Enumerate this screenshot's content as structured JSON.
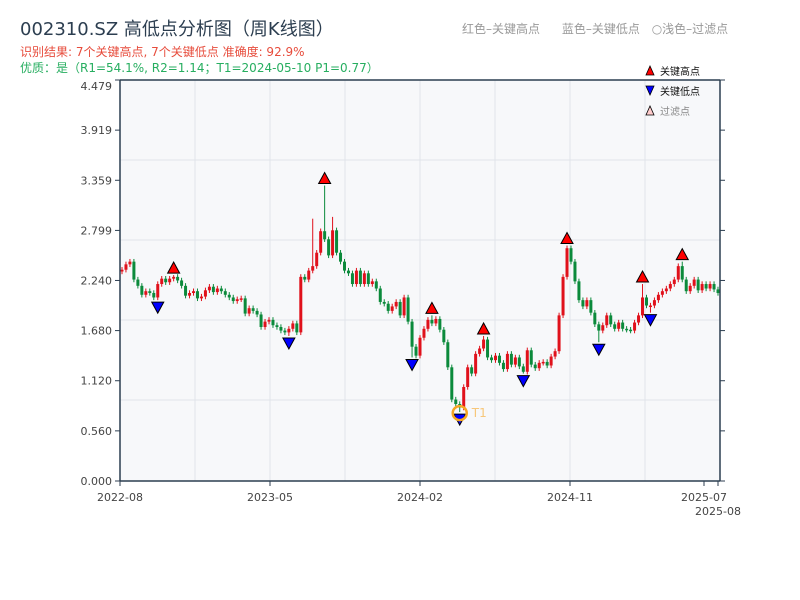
{
  "title": "002310.SZ 高低点分析图（周K线图）",
  "result_line": "识别结果: 7个关键高点, 7个关键低点   准确度: 92.9%",
  "quality_line": "优质：是（R1=54.1%, R2=1.14；T1=2024-05-10 P1=0.77）",
  "top_legend": [
    "红色–关键高点",
    "蓝色–关键低点",
    "○浅色–过滤点"
  ],
  "chart_data": {
    "type": "candlestick",
    "title": "002310.SZ 高低点分析图（周K线图）",
    "ylim": [
      0,
      4.479
    ],
    "y_ticks": [
      "0.000",
      "0.560",
      "1.120",
      "1.680",
      "2.240",
      "2.799",
      "3.359",
      "3.919",
      "4.479"
    ],
    "x_ticks": [
      "2022-08",
      "2023-05",
      "2024-02",
      "2024-11",
      "2025-07",
      "2025-08"
    ],
    "grid": true,
    "legend_placement": "top-right",
    "legend": [
      {
        "label": "关键高点",
        "marker": "triangle-up",
        "color": "#ff0000"
      },
      {
        "label": "关键低点",
        "marker": "triangle-down",
        "color": "#0000ff"
      },
      {
        "label": "过滤点",
        "marker": "triangle-up-hollow",
        "color": "#ffcccc"
      }
    ],
    "colors": {
      "up": "#e0111b",
      "down": "#0b8a3b",
      "high_marker": "#ff0000",
      "low_marker": "#0000ff",
      "t1": "#f5a623"
    },
    "first_open": 2.34,
    "closes": [
      2.36,
      2.42,
      2.45,
      2.25,
      2.18,
      2.08,
      2.12,
      2.1,
      2.05,
      2.2,
      2.26,
      2.22,
      2.26,
      2.28,
      2.24,
      2.18,
      2.07,
      2.1,
      2.12,
      2.04,
      2.06,
      2.13,
      2.17,
      2.11,
      2.15,
      2.12,
      2.08,
      2.05,
      2.01,
      2.03,
      2.04,
      1.87,
      1.93,
      1.9,
      1.86,
      1.72,
      1.78,
      1.8,
      1.74,
      1.72,
      1.68,
      1.66,
      1.7,
      1.76,
      1.66,
      2.28,
      2.25,
      2.35,
      2.4,
      2.55,
      2.79,
      2.7,
      2.52,
      2.8,
      2.55,
      2.45,
      2.35,
      2.32,
      2.2,
      2.35,
      2.2,
      2.32,
      2.2,
      2.23,
      2.15,
      2.0,
      1.98,
      1.9,
      1.95,
      2.0,
      1.85,
      2.05,
      1.78,
      1.5,
      1.4,
      1.6,
      1.7,
      1.8,
      1.76,
      1.81,
      1.69,
      1.55,
      1.27,
      0.91,
      0.86,
      0.82,
      1.05,
      1.27,
      1.2,
      1.42,
      1.48,
      1.58,
      1.38,
      1.35,
      1.4,
      1.32,
      1.25,
      1.42,
      1.3,
      1.38,
      1.28,
      1.22,
      1.46,
      1.3,
      1.26,
      1.32,
      1.33,
      1.29,
      1.39,
      1.45,
      1.85,
      2.28,
      2.6,
      2.45,
      2.23,
      2.02,
      1.95,
      2.02,
      1.88,
      1.75,
      1.68,
      1.74,
      1.85,
      1.75,
      1.7,
      1.77,
      1.7,
      1.69,
      1.68,
      1.77,
      1.85,
      2.05,
      1.96,
      1.96,
      2.02,
      2.08,
      2.12,
      2.15,
      2.2,
      2.25,
      2.4,
      2.25,
      2.12,
      2.18,
      2.25,
      2.13,
      2.2,
      2.15,
      2.2,
      2.14,
      2.1
    ],
    "extreme_highs": {
      "13": 2.3,
      "48": 2.93,
      "51": 3.3,
      "53": 2.95,
      "78": 1.85,
      "91": 1.62,
      "112": 2.63,
      "131": 2.2,
      "141": 2.45
    },
    "extreme_lows": {
      "8": 2.02,
      "42": 1.62,
      "73": 1.38,
      "85": 0.77,
      "101": 1.2,
      "120": 1.55,
      "133": 1.88
    },
    "key_highs": [
      13,
      51,
      78,
      91,
      112,
      131,
      141
    ],
    "key_lows": [
      9,
      42,
      73,
      85,
      101,
      120,
      133
    ],
    "t1": {
      "label": "T1",
      "date": "2024-05-10",
      "price": 0.77
    }
  }
}
